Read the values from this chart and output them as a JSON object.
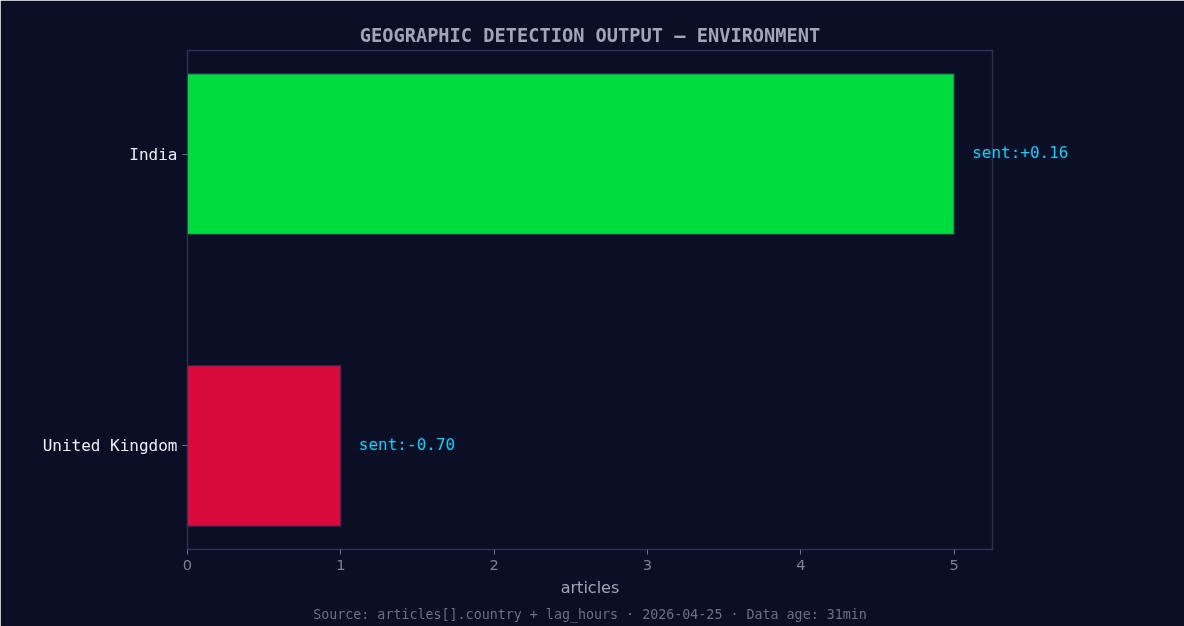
{
  "chart_data": {
    "type": "bar",
    "orientation": "horizontal",
    "title": "GEOGRAPHIC DETECTION OUTPUT — ENVIRONMENT",
    "xlabel": "articles",
    "categories": [
      "India",
      "United Kingdom"
    ],
    "values": [
      5,
      1
    ],
    "colors": [
      "#00dc3e",
      "#d80a3c"
    ],
    "xlim": [
      0,
      5.25
    ],
    "xticks": [
      0,
      1,
      2,
      3,
      4,
      5
    ],
    "grid": false,
    "annotations": [
      {
        "text": "sent:+0.16",
        "x": 5,
        "y": "India"
      },
      {
        "text": "sent:-0.70",
        "x": 1,
        "y": "United Kingdom"
      },
      "Source: articles[].country + lag_hours · 2026-04-25 · Data age: 31min"
    ]
  }
}
